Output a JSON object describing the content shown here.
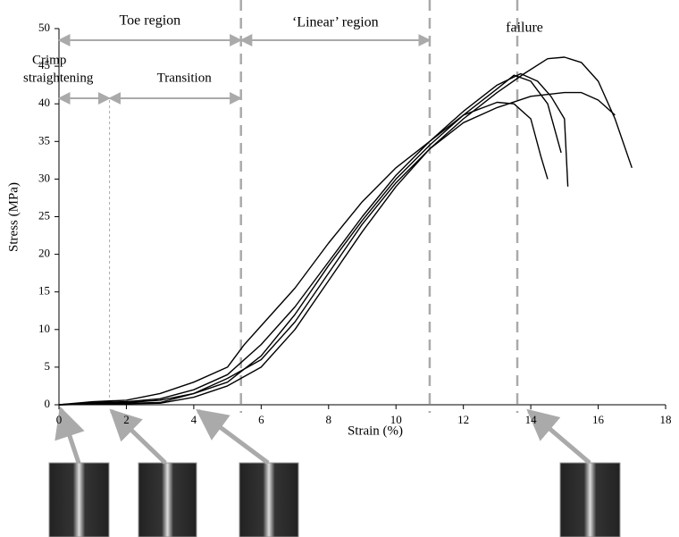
{
  "chart_data": {
    "type": "line",
    "x_label": "Strain (%)",
    "y_label": "Stress (MPa)",
    "xlim": [
      0,
      18
    ],
    "xticks": [
      0,
      2,
      4,
      6,
      8,
      10,
      12,
      14,
      16,
      18
    ],
    "ylim": [
      0,
      50
    ],
    "yticks": [
      0,
      5,
      10,
      15,
      20,
      25,
      30,
      35,
      40,
      45,
      50
    ],
    "vlines": [
      1.5,
      5.4,
      11,
      13.6
    ],
    "annotations": {
      "toe": "Toe region",
      "linear": "‘Linear’ region",
      "failure": "failure",
      "crimp_1": "Crimp",
      "crimp_2": "straightening",
      "transition": "Transition"
    },
    "series": [
      {
        "color": "#000000",
        "x": [
          0,
          1,
          2,
          3,
          4,
          5,
          5.5,
          6,
          7,
          8,
          9,
          10,
          11,
          12,
          13,
          13.5,
          14,
          14.3,
          14.5
        ],
        "values": [
          0,
          0.4,
          0.6,
          1.5,
          3,
          5,
          8,
          10.5,
          15.5,
          21.5,
          27,
          31.5,
          35,
          38.5,
          40.2,
          40,
          38,
          33,
          30
        ]
      },
      {
        "color": "#000000",
        "x": [
          0,
          1,
          2,
          3,
          4,
          5,
          6,
          7,
          8,
          9,
          10,
          11,
          12,
          13,
          13.7,
          14.2,
          14.6,
          15,
          15.1
        ],
        "values": [
          0,
          0.3,
          0.4,
          0.8,
          2,
          4,
          8,
          13,
          19,
          25,
          30.5,
          35,
          39,
          42.5,
          44,
          43,
          41,
          38,
          29
        ]
      },
      {
        "color": "#000000",
        "x": [
          0,
          2,
          3,
          4,
          5,
          6,
          7,
          8,
          9,
          10,
          11,
          12,
          13,
          13.5,
          14,
          14.5,
          14.9
        ],
        "values": [
          0,
          0.3,
          0.6,
          1.5,
          3,
          6.5,
          12,
          18.5,
          24.5,
          30,
          34.5,
          38.5,
          42,
          43.8,
          43,
          40,
          33.5
        ]
      },
      {
        "color": "#000000",
        "x": [
          0,
          3,
          4,
          5,
          6,
          7,
          8,
          9,
          10,
          11,
          12,
          13,
          14,
          15,
          15.5,
          16,
          16.5
        ],
        "values": [
          0,
          0.3,
          1.5,
          3.5,
          6,
          11,
          17.5,
          24,
          29.5,
          34,
          37.5,
          39.5,
          41,
          41.5,
          41.5,
          40.5,
          38.5
        ]
      },
      {
        "color": "#000000",
        "x": [
          0,
          3,
          4,
          5,
          6,
          7,
          8,
          9,
          10,
          11,
          12,
          13,
          13.8,
          14.5,
          15,
          15.5,
          16,
          16.5,
          17
        ],
        "values": [
          0,
          0.2,
          1,
          2.5,
          5,
          10,
          16.5,
          23,
          29,
          34,
          38,
          41.5,
          44,
          46,
          46.2,
          45.5,
          43,
          38,
          31.5
        ]
      }
    ]
  }
}
